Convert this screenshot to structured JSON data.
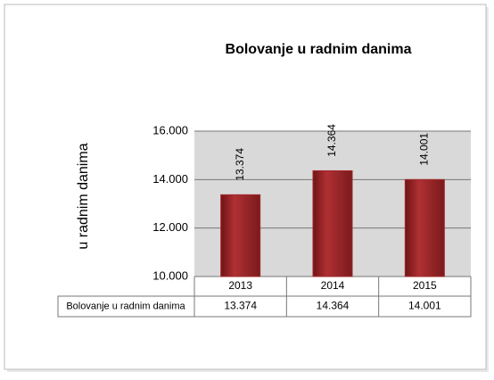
{
  "chart_data": {
    "type": "bar",
    "title": "Bolovanje u radnim danima",
    "y_axis_label": "u radnim danima",
    "categories": [
      "2013",
      "2014",
      "2015"
    ],
    "series": [
      {
        "name": "Bolovanje u radnim danima",
        "color": "#a3282b",
        "values": [
          13374,
          14364,
          14001
        ],
        "value_labels": [
          "13.374",
          "14.364",
          "14.001"
        ]
      }
    ],
    "ylim": [
      10000,
      16000
    ],
    "yticks": [
      {
        "value": 10000,
        "label": "10.000"
      },
      {
        "value": 12000,
        "label": "12.000"
      },
      {
        "value": 14000,
        "label": "14.000"
      },
      {
        "value": 16000,
        "label": "16.000"
      }
    ],
    "grid": true
  }
}
